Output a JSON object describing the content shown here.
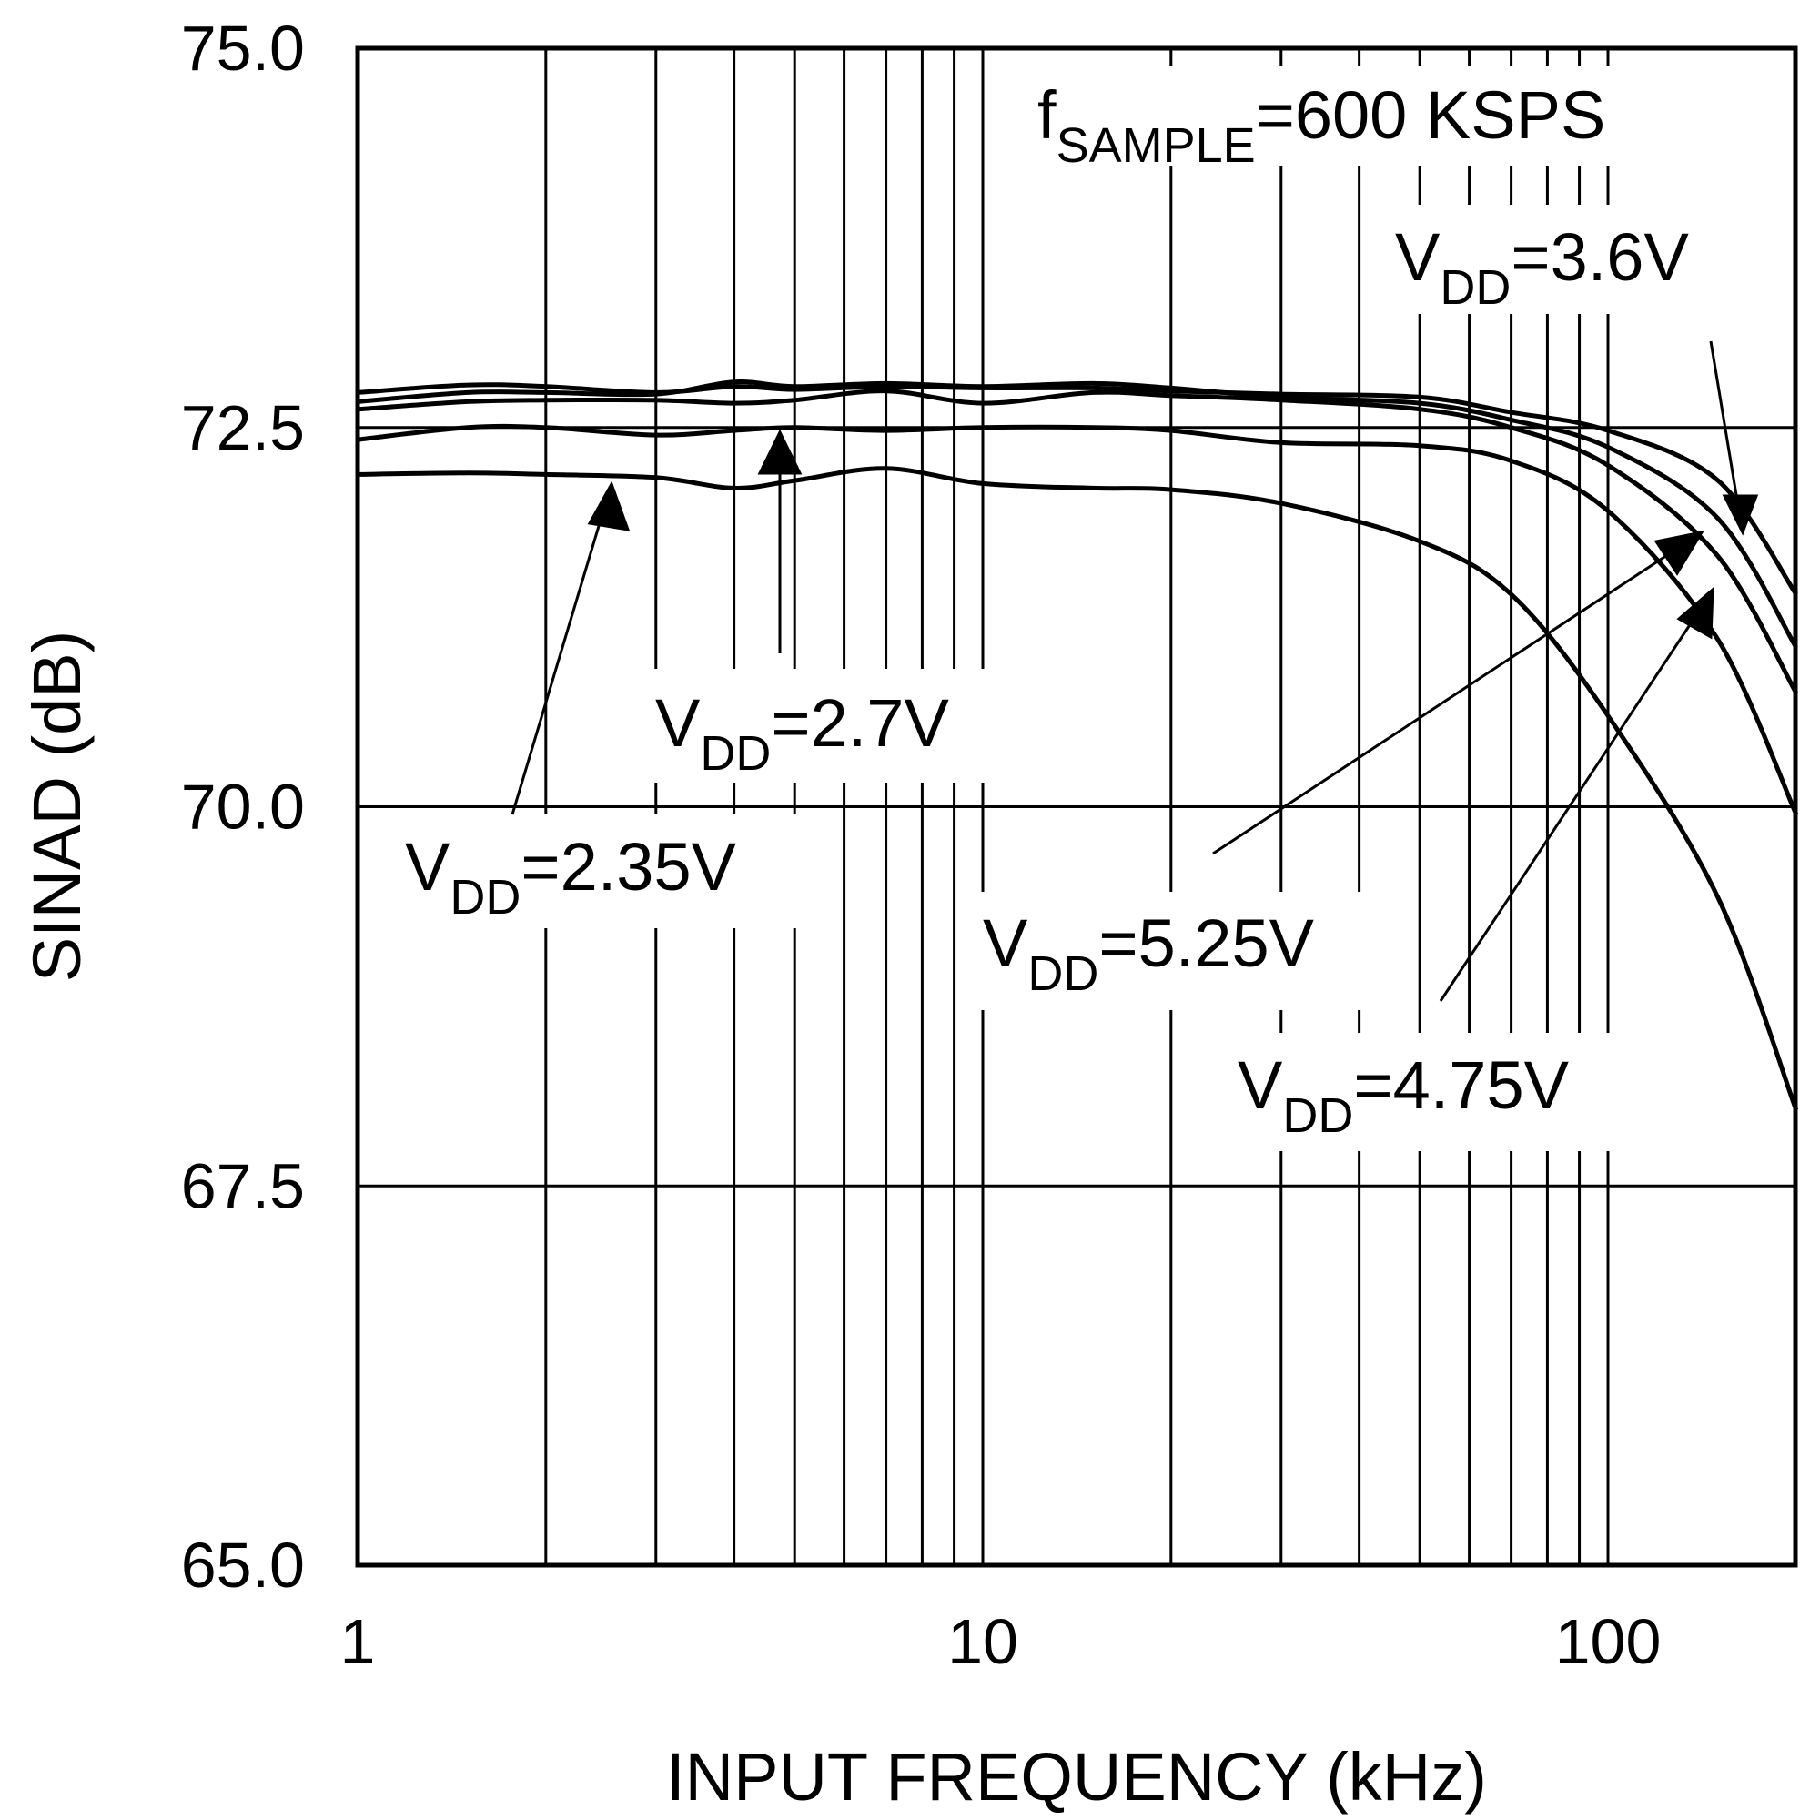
{
  "chart_data": {
    "type": "line",
    "title": "",
    "xlabel": "INPUT FREQUENCY (kHz)",
    "ylabel": "SINAD (dB)",
    "x_scale": "log",
    "xlim": [
      1,
      200
    ],
    "ylim": [
      65.0,
      75.0
    ],
    "x_ticks": [
      {
        "value": 1,
        "label": "1"
      },
      {
        "value": 10,
        "label": "10"
      },
      {
        "value": 100,
        "label": "100"
      }
    ],
    "y_ticks": [
      {
        "value": 65.0,
        "label": "65.0"
      },
      {
        "value": 67.5,
        "label": "67.5"
      },
      {
        "value": 70.0,
        "label": "70.0"
      },
      {
        "value": 72.5,
        "label": "72.5"
      },
      {
        "value": 75.0,
        "label": "75.0"
      }
    ],
    "grid": true,
    "x": [
      1,
      1.5,
      2,
      3,
      4,
      5,
      7,
      10,
      15,
      20,
      30,
      50,
      70,
      100,
      150,
      200
    ],
    "series": [
      {
        "name": "VDD=3.6V",
        "values": [
          72.73,
          72.78,
          72.77,
          72.73,
          72.77,
          72.75,
          72.77,
          72.76,
          72.76,
          72.74,
          72.72,
          72.7,
          72.6,
          72.48,
          72.15,
          71.4
        ]
      },
      {
        "name": "VDD=5.25V",
        "values": [
          72.67,
          72.73,
          72.73,
          72.72,
          72.8,
          72.77,
          72.79,
          72.77,
          72.79,
          72.76,
          72.7,
          72.66,
          72.55,
          72.37,
          71.9,
          71.05
        ]
      },
      {
        "name": "VDD=4.75V",
        "values": [
          72.62,
          72.67,
          72.68,
          72.68,
          72.66,
          72.68,
          72.74,
          72.66,
          72.73,
          72.71,
          72.68,
          72.62,
          72.5,
          72.25,
          71.65,
          70.75
        ]
      },
      {
        "name": "VDD=2.7V",
        "values": [
          72.42,
          72.5,
          72.5,
          72.45,
          72.48,
          72.5,
          72.48,
          72.5,
          72.5,
          72.48,
          72.4,
          72.38,
          72.28,
          71.95,
          71.1,
          69.95
        ]
      },
      {
        "name": "VDD=2.35V",
        "values": [
          72.19,
          72.2,
          72.19,
          72.17,
          72.1,
          72.15,
          72.23,
          72.13,
          72.1,
          72.09,
          72.0,
          71.75,
          71.4,
          70.6,
          69.4,
          68.0
        ]
      }
    ],
    "annotations": [
      {
        "id": "fsample",
        "main": "f",
        "sub": "SAMPLE",
        "rest": "=600 KSPS"
      },
      {
        "id": "v36",
        "main": "V",
        "sub": "DD",
        "rest": "=3.6V",
        "points_to": "VDD=3.6V"
      },
      {
        "id": "v27",
        "main": "V",
        "sub": "DD",
        "rest": "=2.7V",
        "points_to": "VDD=2.7V"
      },
      {
        "id": "v235",
        "main": "V",
        "sub": "DD",
        "rest": "=2.35V",
        "points_to": "VDD=2.35V"
      },
      {
        "id": "v525",
        "main": "V",
        "sub": "DD",
        "rest": "=5.25V",
        "points_to": "VDD=5.25V"
      },
      {
        "id": "v475",
        "main": "V",
        "sub": "DD",
        "rest": "=4.75V",
        "points_to": "VDD=4.75V"
      }
    ]
  }
}
